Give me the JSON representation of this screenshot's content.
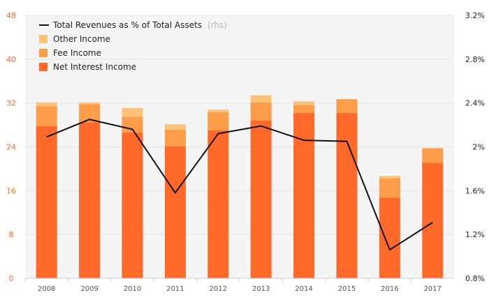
{
  "chart_data": {
    "type": "bar",
    "stacked": true,
    "categories": [
      "2008",
      "2009",
      "2010",
      "2011",
      "2012",
      "2013",
      "2014",
      "2015",
      "2016",
      "2017"
    ],
    "series": [
      {
        "name": "Net Interest Income",
        "color": "#ff6a2b",
        "values": [
          27.8,
          28.5,
          26.6,
          24.1,
          27.0,
          28.8,
          30.2,
          30.2,
          14.7,
          21.1
        ]
      },
      {
        "name": "Fee Income",
        "color": "#ff9c4a",
        "values": [
          3.6,
          3.3,
          2.9,
          3.0,
          3.3,
          3.3,
          1.4,
          2.5,
          3.5,
          2.6
        ]
      },
      {
        "name": "Other Income",
        "color": "#ffc278",
        "values": [
          0.7,
          0.3,
          1.6,
          1.0,
          0.5,
          1.3,
          0.7,
          0.0,
          0.5,
          0.1
        ]
      }
    ],
    "line_series": {
      "name": "Total Revenues as % of Total Assets",
      "name_note": "(rhs)",
      "color": "#111111",
      "axis": "right",
      "values": [
        2.09,
        2.25,
        2.16,
        1.58,
        2.12,
        2.19,
        2.06,
        2.05,
        1.06,
        1.31
      ]
    },
    "y_left": {
      "range": [
        0,
        48
      ],
      "ticks": [
        "0",
        "8",
        "16",
        "24",
        "32",
        "40",
        "48"
      ],
      "color": "#f26b2a"
    },
    "y_right": {
      "range": [
        0.8,
        3.2
      ],
      "ticks": [
        "0.8%",
        "1.2%",
        "1.6%",
        "2%",
        "2.4%",
        "2.8%",
        "3.2%"
      ]
    },
    "grid": "horizontal",
    "legend_position": "top-left"
  }
}
